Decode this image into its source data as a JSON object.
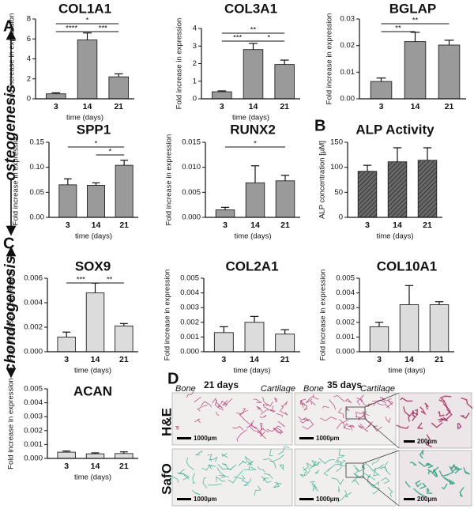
{
  "panel_labels": [
    "A",
    "B",
    "C",
    "D"
  ],
  "section_labels": [
    "osteogenesis",
    "chondrogenesis"
  ],
  "histology": {
    "columns": [
      {
        "left": "Bone",
        "time": "21 days",
        "right": "Cartilage"
      },
      {
        "left": "Bone",
        "time": "35 days",
        "right": "Cartilage"
      }
    ],
    "rows": [
      "H&E",
      "SafO"
    ],
    "scale_bars": [
      "1000µm",
      "1000µm",
      "200µm",
      "1000µm",
      "1000µm",
      "200µm"
    ]
  },
  "chart_data": [
    {
      "type": "bar",
      "title": "COL1A1",
      "categories": [
        "3",
        "14",
        "21"
      ],
      "values": [
        0.5,
        5.9,
        2.2
      ],
      "errors": [
        0.1,
        0.7,
        0.3
      ],
      "color": "#9a9a9a",
      "xlabel": "time (days)",
      "ylabel": "Fold increase in expression",
      "ylim": [
        0,
        8
      ],
      "yticks": [
        0,
        2,
        4,
        6,
        8
      ],
      "significance": [
        {
          "groups": [
            "3",
            "21"
          ],
          "label": "*"
        },
        {
          "groups": [
            "3",
            "14"
          ],
          "label": "****"
        },
        {
          "groups": [
            "14",
            "21"
          ],
          "label": "***"
        }
      ]
    },
    {
      "type": "bar",
      "title": "COL3A1",
      "categories": [
        "3",
        "14",
        "21"
      ],
      "values": [
        0.4,
        2.8,
        1.95
      ],
      "errors": [
        0.05,
        0.35,
        0.25
      ],
      "color": "#9a9a9a",
      "xlabel": "time (days)",
      "ylabel": "Fold increase in expression",
      "ylim": [
        0,
        4
      ],
      "yticks": [
        0,
        1,
        2,
        3,
        4
      ],
      "significance": [
        {
          "groups": [
            "3",
            "21"
          ],
          "label": "**"
        },
        {
          "groups": [
            "3",
            "14"
          ],
          "label": "***"
        },
        {
          "groups": [
            "14",
            "21"
          ],
          "label": "*"
        }
      ]
    },
    {
      "type": "bar",
      "title": "BGLAP",
      "categories": [
        "3",
        "14",
        "21"
      ],
      "values": [
        0.0065,
        0.0215,
        0.0202
      ],
      "errors": [
        0.0013,
        0.0035,
        0.0018
      ],
      "color": "#9a9a9a",
      "ylabel": "Fold increase in expression",
      "ylim": [
        0,
        0.03
      ],
      "yticks": [
        {
          "value": 0,
          "label": "0.00"
        },
        0.01,
        0.02,
        0.03
      ],
      "significance": [
        {
          "groups": [
            "3",
            "21"
          ],
          "label": "**"
        },
        {
          "groups": [
            "3",
            "14"
          ],
          "label": "**"
        }
      ]
    },
    {
      "type": "bar",
      "title": "SPP1",
      "categories": [
        "3",
        "14",
        "21"
      ],
      "values": [
        0.065,
        0.064,
        0.104
      ],
      "errors": [
        0.012,
        0.005,
        0.01
      ],
      "color": "#9a9a9a",
      "xlabel": "time (days)",
      "ylabel": "Fold increase in expression",
      "ylim": [
        0,
        0.15
      ],
      "yticks": [
        {
          "value": 0,
          "label": "0.00"
        },
        0.05,
        {
          "value": 0.1,
          "label": "0.10"
        },
        0.15
      ],
      "significance": [
        {
          "groups": [
            "3",
            "21"
          ],
          "label": "*"
        },
        {
          "groups": [
            "14",
            "21"
          ],
          "label": "*"
        }
      ]
    },
    {
      "type": "bar",
      "title": "RUNX2",
      "categories": [
        "3",
        "14",
        "21"
      ],
      "values": [
        0.0015,
        0.0069,
        0.0073
      ],
      "errors": [
        0.0005,
        0.0034,
        0.0011
      ],
      "color": "#9a9a9a",
      "xlabel": "time (days)",
      "ylabel": "Fold increase in expression",
      "ylim": [
        0,
        0.015
      ],
      "yticks": [
        {
          "value": 0,
          "label": "0.000"
        },
        0.005,
        {
          "value": 0.01,
          "label": "0.010"
        },
        0.015
      ],
      "significance": [
        {
          "groups": [
            "3",
            "21"
          ],
          "label": "*"
        }
      ]
    },
    {
      "type": "bar",
      "title": "ALP Activity",
      "categories": [
        "3",
        "14",
        "21"
      ],
      "values": [
        92,
        111,
        114
      ],
      "errors": [
        12,
        28,
        25
      ],
      "color": "#4a4a4a",
      "hatch": true,
      "xlabel": "time (days)",
      "ylabel": "ALP concentration [µM]",
      "ylim": [
        0,
        150
      ],
      "yticks": [
        0,
        50,
        100,
        150
      ]
    },
    {
      "type": "bar",
      "title": "SOX9",
      "categories": [
        "3",
        "14",
        "21"
      ],
      "values": [
        0.0012,
        0.0048,
        0.0021
      ],
      "errors": [
        0.0004,
        0.0008,
        0.0002
      ],
      "color": "#dcdcdc",
      "xlabel": "time (days)",
      "ylabel": "Fold increase in expression",
      "ylim": [
        0,
        0.006
      ],
      "yticks": [
        {
          "value": 0,
          "label": "0.000"
        },
        0.002,
        0.004,
        0.006
      ],
      "significance": [
        {
          "groups": [
            "3",
            "14"
          ],
          "label": "***"
        },
        {
          "groups": [
            "14",
            "21"
          ],
          "label": "**"
        }
      ]
    },
    {
      "type": "bar",
      "title": "COL2A1",
      "categories": [
        "3",
        "14",
        "21"
      ],
      "values": [
        0.0013,
        0.002,
        0.0012
      ],
      "errors": [
        0.0004,
        0.0004,
        0.0003
      ],
      "color": "#dcdcdc",
      "xlabel": "time (days)",
      "ylabel": "Fold increase in expression",
      "ylim": [
        0,
        0.005
      ],
      "yticks": [
        {
          "value": 0,
          "label": "0.000"
        },
        0.001,
        0.002,
        0.003,
        0.004,
        0.005
      ]
    },
    {
      "type": "bar",
      "title": "COL10A1",
      "categories": [
        "3",
        "14",
        "21"
      ],
      "values": [
        0.0017,
        0.0032,
        0.0032
      ],
      "errors": [
        0.0003,
        0.0013,
        0.0002
      ],
      "color": "#dcdcdc",
      "xlabel": "time (days)",
      "ylabel": "Fold increase in expression",
      "ylim": [
        0,
        0.005
      ],
      "yticks": [
        {
          "value": 0,
          "label": "0.000"
        },
        0.001,
        0.002,
        0.003,
        0.004,
        0.005
      ]
    },
    {
      "type": "bar",
      "title": "ACAN",
      "categories": [
        "3",
        "14",
        "21"
      ],
      "values": [
        0.00045,
        0.00033,
        0.00035
      ],
      "errors": [
        8e-05,
        7e-05,
        0.00012
      ],
      "color": "#dcdcdc",
      "xlabel": "time (days)",
      "ylabel": "Fold increase in expression",
      "ylim": [
        0,
        0.005
      ],
      "yticks": [
        {
          "value": 0,
          "label": "0.000"
        },
        0.001,
        0.002,
        0.003,
        0.004,
        0.005
      ]
    }
  ]
}
